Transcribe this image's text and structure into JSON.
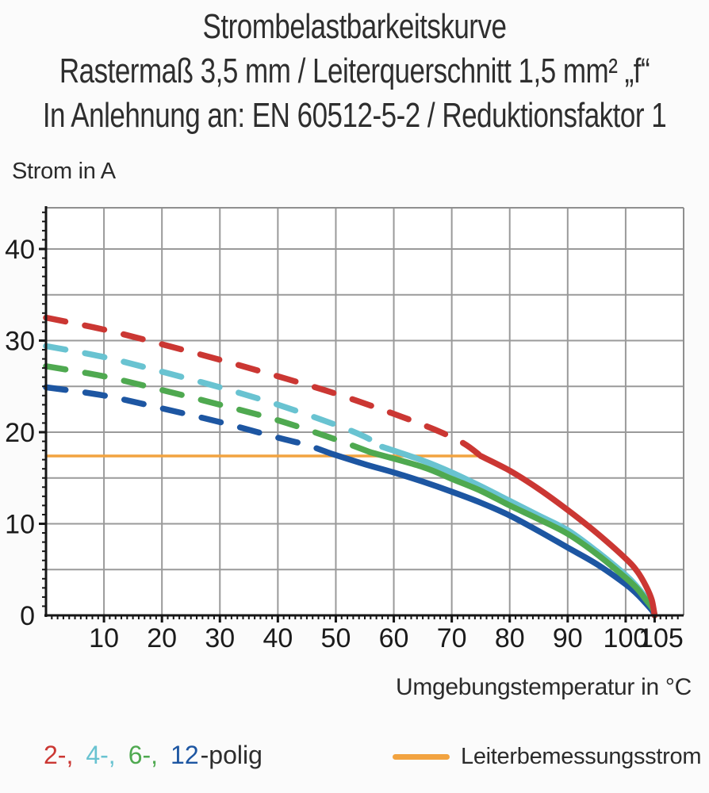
{
  "title": {
    "line1": "Strombelastbarkeitskurve",
    "line2": "Rastermaß 3,5 mm / Leiterquerschnitt 1,5 mm² „f“",
    "line3": "In Anlehnung an: EN 60512-5-2 / Reduktionsfaktor 1"
  },
  "chart_data": {
    "type": "line",
    "title": "Strombelastbarkeitskurve",
    "xlabel": "Umgebungstemperatur in °C",
    "ylabel": "Strom in A",
    "xlim": [
      0,
      110
    ],
    "ylim": [
      0,
      44.5
    ],
    "x_gridline_step": 10,
    "y_gridline_step": 5,
    "x_minor_tick_step": 1,
    "y_minor_tick_step": 1,
    "x_major_ticks": [
      10,
      20,
      30,
      40,
      50,
      60,
      70,
      80,
      90,
      100,
      105
    ],
    "x_tick_labels": [
      "10",
      "20",
      "30",
      "40",
      "50",
      "60",
      "70",
      "80",
      "90",
      "100",
      "105"
    ],
    "y_major_ticks": [
      0,
      10,
      20,
      30,
      40
    ],
    "y_tick_labels": [
      "0",
      "10",
      "20",
      "30",
      "40"
    ],
    "grid": true,
    "colors": {
      "grid": "#9a9a9a",
      "frame": "#8f8f8f",
      "axis": "#161616",
      "tick_label": "#1b1b1b",
      "plot_background": "#ffffff"
    },
    "series": [
      {
        "name": "Leiterbemessungsstrom",
        "color": "#f2a340",
        "rated_line": true,
        "solid": [
          [
            0,
            17.4
          ],
          [
            75,
            17.4
          ]
        ]
      },
      {
        "name": "12-polig",
        "color": "#1d56a2",
        "dashed": [
          [
            0,
            24.9
          ],
          [
            10,
            24.0
          ],
          [
            20,
            22.6
          ],
          [
            30,
            21.1
          ],
          [
            40,
            19.4
          ],
          [
            45,
            18.6
          ],
          [
            49,
            17.7
          ]
        ],
        "solid": [
          [
            49,
            17.7
          ],
          [
            55,
            16.5
          ],
          [
            60,
            15.6
          ],
          [
            65,
            14.6
          ],
          [
            70,
            13.5
          ],
          [
            75,
            12.3
          ],
          [
            80,
            10.9
          ],
          [
            85,
            9.2
          ],
          [
            90,
            7.4
          ],
          [
            95,
            5.6
          ],
          [
            100,
            3.4
          ],
          [
            102,
            2.3
          ],
          [
            103.5,
            1.3
          ],
          [
            104.6,
            0.5
          ],
          [
            105,
            0
          ]
        ]
      },
      {
        "name": "4-polig",
        "color": "#69c3d1",
        "dashed": [
          [
            0,
            29.4
          ],
          [
            10,
            28.2
          ],
          [
            20,
            26.6
          ],
          [
            30,
            24.9
          ],
          [
            40,
            23.0
          ],
          [
            50,
            20.8
          ],
          [
            55,
            19.5
          ],
          [
            58,
            18.4
          ]
        ],
        "solid": [
          [
            58,
            18.4
          ],
          [
            65,
            16.9
          ],
          [
            70,
            15.6
          ],
          [
            75,
            14.1
          ],
          [
            80,
            12.5
          ],
          [
            85,
            10.9
          ],
          [
            90,
            9.3
          ],
          [
            95,
            7.0
          ],
          [
            100,
            4.4
          ],
          [
            102,
            3.1
          ],
          [
            103.5,
            1.9
          ],
          [
            104.7,
            0.8
          ],
          [
            105,
            0
          ]
        ]
      },
      {
        "name": "6-polig",
        "color": "#4fa950",
        "dashed": [
          [
            0,
            27.2
          ],
          [
            10,
            26.1
          ],
          [
            20,
            24.6
          ],
          [
            30,
            23.0
          ],
          [
            40,
            21.3
          ],
          [
            50,
            19.2
          ],
          [
            56,
            17.8
          ]
        ],
        "solid": [
          [
            56,
            17.8
          ],
          [
            65,
            16.2
          ],
          [
            70,
            14.9
          ],
          [
            75,
            13.6
          ],
          [
            80,
            12.0
          ],
          [
            85,
            10.5
          ],
          [
            90,
            8.9
          ],
          [
            95,
            6.7
          ],
          [
            100,
            4.1
          ],
          [
            102,
            2.9
          ],
          [
            103.5,
            1.7
          ],
          [
            104.7,
            0.7
          ],
          [
            105,
            0
          ]
        ]
      },
      {
        "name": "2-polig",
        "color": "#cb3733",
        "dashed": [
          [
            0,
            32.5
          ],
          [
            10,
            31.2
          ],
          [
            20,
            29.6
          ],
          [
            30,
            27.9
          ],
          [
            40,
            26.1
          ],
          [
            50,
            24.2
          ],
          [
            60,
            22.0
          ],
          [
            67,
            20.3
          ],
          [
            72,
            18.8
          ],
          [
            75,
            17.4
          ]
        ],
        "solid": [
          [
            75,
            17.4
          ],
          [
            80,
            15.8
          ],
          [
            85,
            13.8
          ],
          [
            90,
            11.5
          ],
          [
            95,
            9.0
          ],
          [
            100,
            6.2
          ],
          [
            102,
            4.8
          ],
          [
            103.5,
            3.2
          ],
          [
            104.5,
            1.7
          ],
          [
            105,
            0
          ]
        ]
      }
    ]
  },
  "legend": {
    "poles": [
      {
        "label": "2-,",
        "color": "#cb3733"
      },
      {
        "label": "4-,",
        "color": "#69c3d1"
      },
      {
        "label": "6-,",
        "color": "#4fa950"
      },
      {
        "label": "12",
        "color": "#1d56a2"
      }
    ],
    "suffix": "-polig",
    "rated_label": "Leiterbemessungsstrom",
    "rated_color": "#f2a340"
  }
}
